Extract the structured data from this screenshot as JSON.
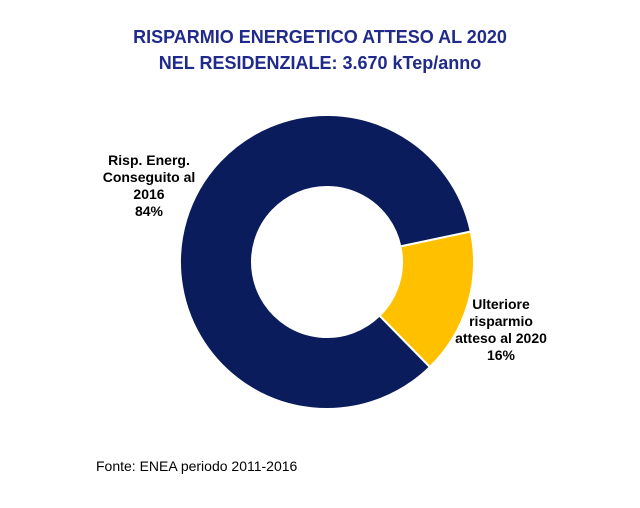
{
  "chart_data": {
    "type": "pie",
    "title_lines": [
      "RISPARMIO ENERGETICO ATTESO AL 2020",
      "NEL RESIDENZIALE: 3.670 kTep/anno"
    ],
    "slices": [
      {
        "label_lines": [
          "Risp. Energ.",
          "Conseguito al",
          "2016"
        ],
        "percent_label": "84%",
        "value": 84,
        "color": "#0a1c5c"
      },
      {
        "label_lines": [
          "Ulteriore",
          "risparmio",
          "atteso al 2020"
        ],
        "percent_label": "16%",
        "value": 16,
        "color": "#ffc000"
      }
    ],
    "source": "Fonte: ENEA periodo 2011-2016"
  },
  "colors": {
    "title": "#1f2a8a",
    "separator": "#ffffff"
  }
}
